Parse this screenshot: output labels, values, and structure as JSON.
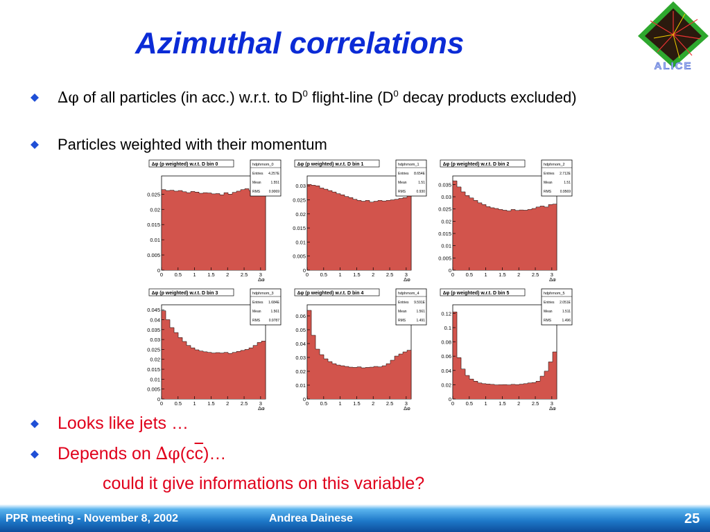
{
  "slide": {
    "title": "Azimuthal correlations",
    "page_number": "25"
  },
  "bullets": {
    "b1_symbol": "∆φ",
    "b1_text_a": " of all particles (in acc.) w.r.t. to D",
    "b1_sup_a": "0",
    "b1_text_b": " flight-line (D",
    "b1_sup_b": "0",
    "b1_text_c": " decay products excluded)",
    "b2": "Particles weighted with their momentum",
    "b3": "Looks like jets …",
    "b4_prefix": "Depends on ",
    "b4_symbol": "∆φ",
    "b4_open": "(c",
    "b4_cbar": "c",
    "b4_close": ")…",
    "sub": "could it give informations on this variable?"
  },
  "footer": {
    "left": "PPR meeting - November 8, 2002",
    "center": "Andrea Dainese"
  },
  "colors": {
    "title": "#0b2bd6",
    "red_text": "#e0001b",
    "histogram_fill": "#d2544c",
    "footer_bar": "#1e78c8"
  },
  "logo": {
    "name": "ALICE",
    "text": "ALICE"
  },
  "chart_data": [
    {
      "type": "bar",
      "title": "∆φ (p weighted) w.r.t. D bin 0",
      "xlabel": "∆φ",
      "xlim": [
        0,
        3.15
      ],
      "ylim": [
        0,
        0.031
      ],
      "yticks": [
        0,
        0.005,
        0.01,
        0.015,
        0.02,
        0.025
      ],
      "ytick_labels": [
        "0",
        "0.005",
        "0.01",
        "0.015",
        "0.02",
        "0.025"
      ],
      "xticks": [
        0,
        0.5,
        1,
        1.5,
        2,
        2.5,
        3
      ],
      "xtick_labels": [
        "0",
        "0.5",
        "1",
        "1.5",
        "2",
        "2.5",
        "3"
      ],
      "values": [
        0.0265,
        0.0262,
        0.0263,
        0.026,
        0.0262,
        0.0258,
        0.0255,
        0.0259,
        0.0257,
        0.0253,
        0.0255,
        0.0254,
        0.0251,
        0.0252,
        0.0248,
        0.0255,
        0.025,
        0.0256,
        0.026,
        0.0265,
        0.0268,
        0.0262,
        0.0266,
        0.0264,
        0.0263
      ],
      "stats": {
        "name": "hdphmom_0",
        "entries": "4.257E",
        "mean": "1.551",
        "rms": "0.9069"
      }
    },
    {
      "type": "bar",
      "title": "∆φ (p weighted) w.r.t. D bin 1",
      "xlabel": "∆φ",
      "xlim": [
        0,
        3.15
      ],
      "ylim": [
        0,
        0.0335
      ],
      "yticks": [
        0,
        0.005,
        0.01,
        0.015,
        0.02,
        0.025,
        0.03
      ],
      "ytick_labels": [
        "0",
        "0.005",
        "0.01",
        "0.015",
        "0.02",
        "0.025",
        "0.03"
      ],
      "xticks": [
        0,
        0.5,
        1,
        1.5,
        2,
        2.5,
        3
      ],
      "xtick_labels": [
        "0",
        "0.5",
        "1",
        "1.5",
        "2",
        "2.5",
        "3"
      ],
      "values": [
        0.0305,
        0.0302,
        0.03,
        0.0292,
        0.0288,
        0.0283,
        0.0278,
        0.0272,
        0.0268,
        0.0262,
        0.0258,
        0.0252,
        0.0248,
        0.0245,
        0.0248,
        0.0242,
        0.0245,
        0.0248,
        0.0246,
        0.0248,
        0.025,
        0.0252,
        0.0255,
        0.0258,
        0.0268
      ],
      "stats": {
        "name": "hdphmom_1",
        "entries": "8.654E",
        "mean": "1.51",
        "rms": "0.930"
      }
    },
    {
      "type": "bar",
      "title": "∆φ (p weighted) w.r.t. D bin 2",
      "xlabel": "∆φ",
      "xlim": [
        0,
        3.15
      ],
      "ylim": [
        0,
        0.0385
      ],
      "yticks": [
        0,
        0.005,
        0.01,
        0.015,
        0.02,
        0.025,
        0.03,
        0.035
      ],
      "ytick_labels": [
        "0",
        "0.005",
        "0.01",
        "0.015",
        "0.02",
        "0.025",
        "0.03",
        "0.035"
      ],
      "xticks": [
        0,
        0.5,
        1,
        1.5,
        2,
        2.5,
        3
      ],
      "xtick_labels": [
        "0",
        "0.5",
        "1",
        "1.5",
        "2",
        "2.5",
        "3"
      ],
      "values": [
        0.0365,
        0.034,
        0.032,
        0.0305,
        0.0295,
        0.0285,
        0.0275,
        0.0268,
        0.026,
        0.0255,
        0.0252,
        0.0248,
        0.0245,
        0.0242,
        0.0248,
        0.0244,
        0.0246,
        0.0245,
        0.0248,
        0.0252,
        0.0258,
        0.0262,
        0.0258,
        0.0268,
        0.027
      ],
      "stats": {
        "name": "hdphmom_2",
        "entries": "2.712E",
        "mean": "1.51",
        "rms": "0.9569"
      }
    },
    {
      "type": "bar",
      "title": "∆φ (p weighted) w.r.t. D bin 3",
      "xlabel": "∆φ",
      "xlim": [
        0,
        3.15
      ],
      "ylim": [
        0,
        0.0475
      ],
      "yticks": [
        0,
        0.005,
        0.01,
        0.015,
        0.02,
        0.025,
        0.03,
        0.035,
        0.04,
        0.045
      ],
      "ytick_labels": [
        "0",
        "0.005",
        "0.01",
        "0.015",
        "0.02",
        "0.025",
        "0.03",
        "0.035",
        "0.04",
        "0.045"
      ],
      "xticks": [
        0,
        0.5,
        1,
        1.5,
        2,
        2.5,
        3
      ],
      "xtick_labels": [
        "0",
        "0.5",
        "1",
        "1.5",
        "2",
        "2.5",
        "3"
      ],
      "values": [
        0.0445,
        0.04,
        0.036,
        0.0335,
        0.031,
        0.029,
        0.027,
        0.0258,
        0.0248,
        0.0242,
        0.0238,
        0.0235,
        0.0232,
        0.0234,
        0.0232,
        0.0235,
        0.023,
        0.0235,
        0.024,
        0.0245,
        0.025,
        0.0258,
        0.027,
        0.0285,
        0.0292
      ],
      "stats": {
        "name": "hdphmom_3",
        "entries": "1.684E",
        "mean": "1.561",
        "rms": "0.9787"
      }
    },
    {
      "type": "bar",
      "title": "∆φ (p weighted) w.r.t. D bin 4",
      "xlabel": "∆φ",
      "xlim": [
        0,
        3.15
      ],
      "ylim": [
        0,
        0.068
      ],
      "yticks": [
        0,
        0.01,
        0.02,
        0.03,
        0.04,
        0.05,
        0.06
      ],
      "ytick_labels": [
        "0",
        "0.01",
        "0.02",
        "0.03",
        "0.04",
        "0.05",
        "0.06"
      ],
      "xticks": [
        0,
        0.5,
        1,
        1.5,
        2,
        2.5,
        3
      ],
      "xtick_labels": [
        "0",
        "0.5",
        "1",
        "1.5",
        "2",
        "2.5",
        "3"
      ],
      "values": [
        0.064,
        0.046,
        0.036,
        0.032,
        0.029,
        0.027,
        0.0255,
        0.0245,
        0.024,
        0.0235,
        0.023,
        0.0228,
        0.0232,
        0.0225,
        0.0228,
        0.023,
        0.0235,
        0.0232,
        0.024,
        0.0255,
        0.028,
        0.031,
        0.0325,
        0.034,
        0.0352
      ],
      "stats": {
        "name": "hdphmom_4",
        "entries": "9.591E",
        "mean": "1.561",
        "rms": "1.491"
      }
    },
    {
      "type": "bar",
      "title": "∆φ (p weighted) w.r.t. D bin 5",
      "xlabel": "∆φ",
      "xlim": [
        0,
        3.15
      ],
      "ylim": [
        0,
        0.132
      ],
      "yticks": [
        0,
        0.02,
        0.04,
        0.06,
        0.08,
        0.1,
        0.12
      ],
      "ytick_labels": [
        "0",
        "0.02",
        "0.04",
        "0.06",
        "0.08",
        "0.1",
        "0.12"
      ],
      "xticks": [
        0,
        0.5,
        1,
        1.5,
        2,
        2.5,
        3
      ],
      "xtick_labels": [
        "0",
        "0.5",
        "1",
        "1.5",
        "2",
        "2.5",
        "3"
      ],
      "values": [
        0.122,
        0.058,
        0.042,
        0.033,
        0.028,
        0.025,
        0.0225,
        0.0215,
        0.021,
        0.0205,
        0.0198,
        0.02,
        0.0202,
        0.0198,
        0.0205,
        0.0202,
        0.0208,
        0.0215,
        0.0225,
        0.023,
        0.025,
        0.032,
        0.039,
        0.052,
        0.066
      ],
      "stats": {
        "name": "hdphmom_5",
        "entries": "2.051E",
        "mean": "1.511",
        "rms": "1.496"
      }
    }
  ]
}
